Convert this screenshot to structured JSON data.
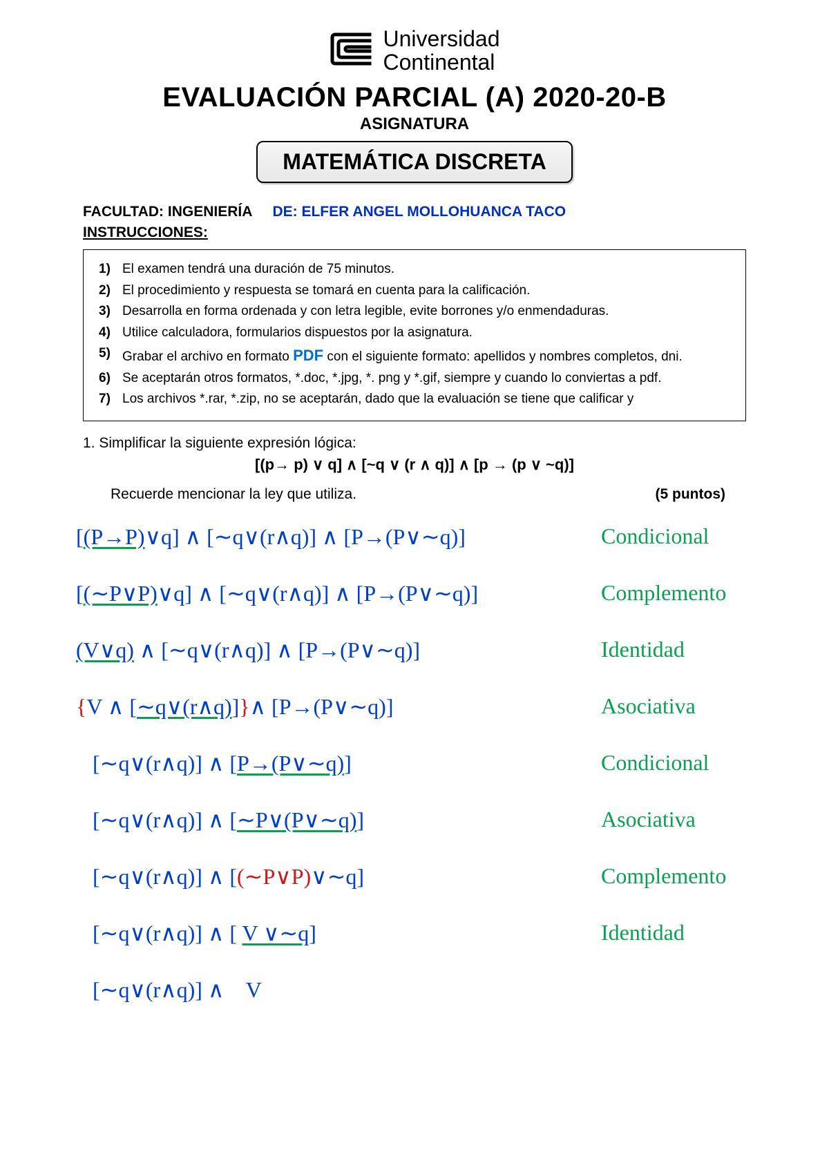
{
  "university": {
    "line1": "Universidad",
    "line2": "Continental"
  },
  "title": "EVALUACIÓN PARCIAL (A) 2020-20-B",
  "asignatura_label": "ASIGNATURA",
  "course": "MATEMÁTICA DISCRETA",
  "facultad_label": "FACULTAD:  INGENIERÍA",
  "de_label": "DE: ELFER ANGEL MOLLOHUANCA TACO",
  "instrucciones_label": "INSTRUCCIONES:",
  "instructions": [
    "El examen tendrá una duración de 75 minutos.",
    "El procedimiento y respuesta se tomará en cuenta para la calificación.",
    "Desarrolla en forma ordenada y con letra legible, evite borrones y/o enmendaduras.",
    "Utilice calculadora, formularios dispuestos por la asignatura.",
    "Grabar el archivo en formato PDF con el siguiente formato: apellidos y nombres completos, dni.",
    "Se aceptarán otros formatos, *.doc, *.jpg, *. png y *.gif, siempre y cuando lo conviertas a pdf.",
    "Los archivos *.rar, *.zip, no se aceptarán, dado que la evaluación se tiene que calificar y"
  ],
  "pdf_token": "PDF",
  "question": {
    "number": "1.",
    "text": "Simplificar la siguiente expresión lógica:",
    "formula": "[(p→ p) ∨ q] ∧ [~q ∨ (r ∧ q)] ∧ [p → (p ∨ ~q)]",
    "note": "Recuerde mencionar la ley que utiliza.",
    "points": "(5 puntos)"
  },
  "work": {
    "rows": [
      {
        "expr": "[(P→P)∨q] ∧ [∼q∨(r∧q)] ∧ [P→(P∨∼q)]",
        "u": "(P→P)",
        "law": "Condicional"
      },
      {
        "expr": "[(∼P∨P)∨q] ∧ [∼q∨(r∧q)] ∧ [P→(P∨∼q)]",
        "u": "(∼P∨P)",
        "law": "Complemento"
      },
      {
        "expr": "(V∨q) ∧ [∼q∨(r∧q)] ∧ [P→(P∨∼q)]",
        "u": "(V∨q)",
        "law": "Identidad"
      },
      {
        "expr": "{V ∧ [∼q∨(r∧q)]}∧ [P→(P∨∼q)]",
        "u": "∼q∨(r∧q)",
        "red": "{",
        "red2": "}",
        "law": "Asociativa"
      },
      {
        "expr": "   [∼q∨(r∧q)] ∧ [P→(P∨∼q)]",
        "u": "P→(P∨∼q)",
        "law": "Condicional"
      },
      {
        "expr": "   [∼q∨(r∧q)] ∧ [∼P∨(P∨∼q)]",
        "u": "∼P∨(P∨∼q)",
        "law": "Asociativa"
      },
      {
        "expr": "   [∼q∨(r∧q)] ∧ [(∼P∨P)∨∼q]",
        "u": "",
        "red": "(∼P∨P)",
        "law": "Complemento"
      },
      {
        "expr": "   [∼q∨(r∧q)] ∧ [ V ∨∼q]",
        "u": "V ∨∼q",
        "law": "Identidad"
      },
      {
        "expr": "   [∼q∨(r∧q)] ∧    V",
        "u": "",
        "law": ""
      }
    ]
  },
  "colors": {
    "ink_blue": "#0040c8",
    "law_green": "#0aa050",
    "mark_red": "#d01818",
    "pdf_blue": "#0070d0",
    "de_blue": "#0030c0"
  }
}
